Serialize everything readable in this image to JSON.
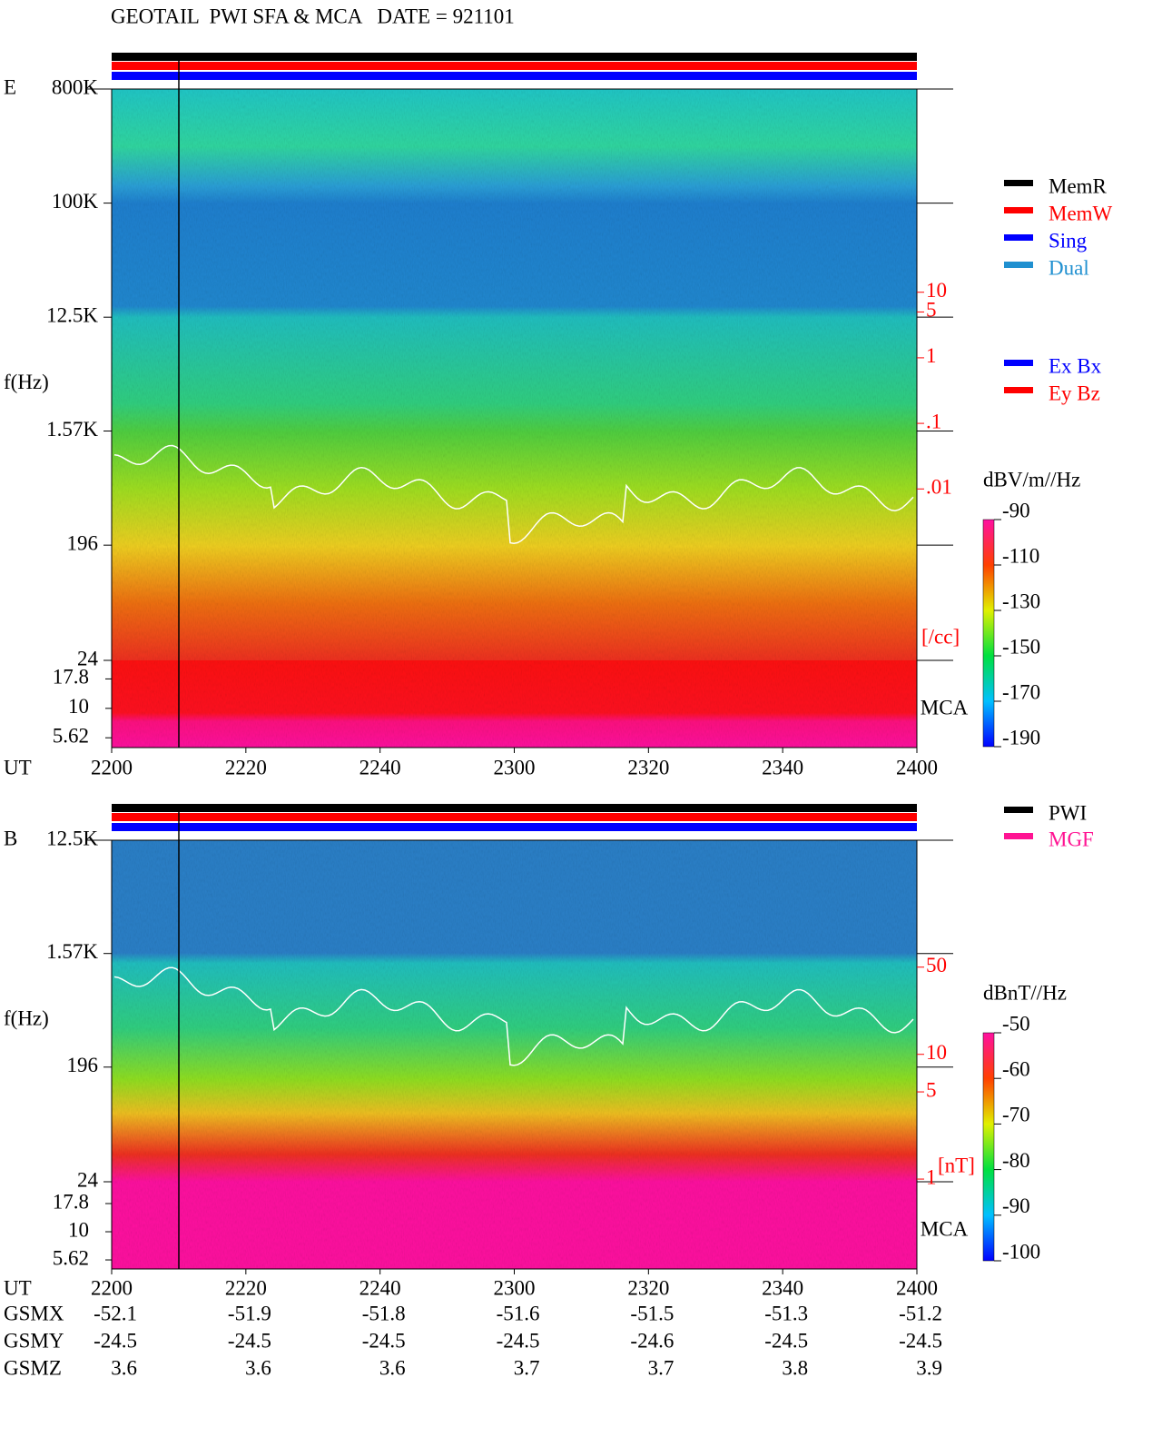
{
  "title": "GEOTAIL  PWI SFA & MCA   DATE = 921101",
  "chart_data": [
    {
      "type": "spectrogram",
      "panel_label": "E",
      "y_label": "f(Hz)",
      "x_label": "UT",
      "x": [
        "2200",
        "2220",
        "2240",
        "2300",
        "2320",
        "2340",
        "2400"
      ],
      "log_y": true,
      "ylim": [
        24,
        800000
      ],
      "yticks": [
        {
          "value": 800000,
          "label": "800K"
        },
        {
          "value": 100000,
          "label": "100K"
        },
        {
          "value": 12500,
          "label": "12.5K"
        },
        {
          "value": 1570,
          "label": "1.57K"
        },
        196,
        24
      ],
      "mca_label": "MCA",
      "mca_ylim": [
        4.64,
        25.6
      ],
      "mca_yticks": [
        17.8,
        10,
        5.62
      ],
      "y3lim": [
        0.005,
        20
      ],
      "y3ticks": [
        10,
        5,
        1,
        {
          "value": 0.1,
          "label": ".1"
        },
        {
          "value": 0.01,
          "label": ".01"
        }
      ],
      "y3_label": "[/cc]",
      "y3_color": "#ff0000",
      "colorbar": {
        "label": "dBV/m//Hz",
        "lim": [
          -190,
          -90
        ],
        "ticks": [
          -90,
          -110,
          -130,
          -150,
          -170,
          -190
        ]
      },
      "legend": [
        [
          {
            "name": "MemR",
            "color": "#000000"
          },
          {
            "name": "MemW",
            "color": "#ff0000"
          },
          {
            "name": "Sing",
            "color": "#0000ff"
          },
          {
            "name": "Dual",
            "color": "#2090d0"
          }
        ],
        [
          {
            "name": "Ex Bx",
            "color": "#0000ff"
          },
          {
            "name": "Ey Bz",
            "color": "#ff0000"
          }
        ]
      ]
    },
    {
      "type": "spectrogram",
      "panel_label": "B",
      "y_label": "f(Hz)",
      "x_label": "UT",
      "x": [
        "2200",
        "2220",
        "2240",
        "2300",
        "2320",
        "2340",
        "2400"
      ],
      "log_y": true,
      "ylim": [
        24,
        12500
      ],
      "yticks": [
        {
          "value": 12500,
          "label": "12.5K"
        },
        {
          "value": 1570,
          "label": "1.57K"
        },
        196,
        24
      ],
      "mca_label": "MCA",
      "mca_ylim": [
        4.67,
        27.8
      ],
      "mca_yticks": [
        17.8,
        10,
        5.62
      ],
      "y3lim": [
        0.89,
        64
      ],
      "y3ticks": [
        50,
        10,
        5,
        1
      ],
      "y3_label": "[nT]",
      "y3_color": "#ff0000",
      "colorbar": {
        "label": "dBnT//Hz",
        "lim": [
          -100,
          -50
        ],
        "ticks": [
          -50,
          -60,
          -70,
          -80,
          -90,
          -100
        ]
      },
      "legend": [
        [
          {
            "name": "PWI",
            "color": "#000000"
          },
          {
            "name": "MGF",
            "color": "#ff1493"
          }
        ]
      ],
      "orbit": [
        {
          "name": "GSMX",
          "values": [
            -52.1,
            -51.9,
            -51.8,
            -51.6,
            -51.5,
            -51.3,
            -51.2
          ]
        },
        {
          "name": "GSMY",
          "values": [
            -24.5,
            -24.5,
            -24.5,
            -24.5,
            -24.6,
            -24.5,
            -24.5
          ]
        },
        {
          "name": "GSMZ",
          "values": [
            3.6,
            3.6,
            3.6,
            3.7,
            3.7,
            3.8,
            3.9
          ]
        }
      ]
    }
  ]
}
